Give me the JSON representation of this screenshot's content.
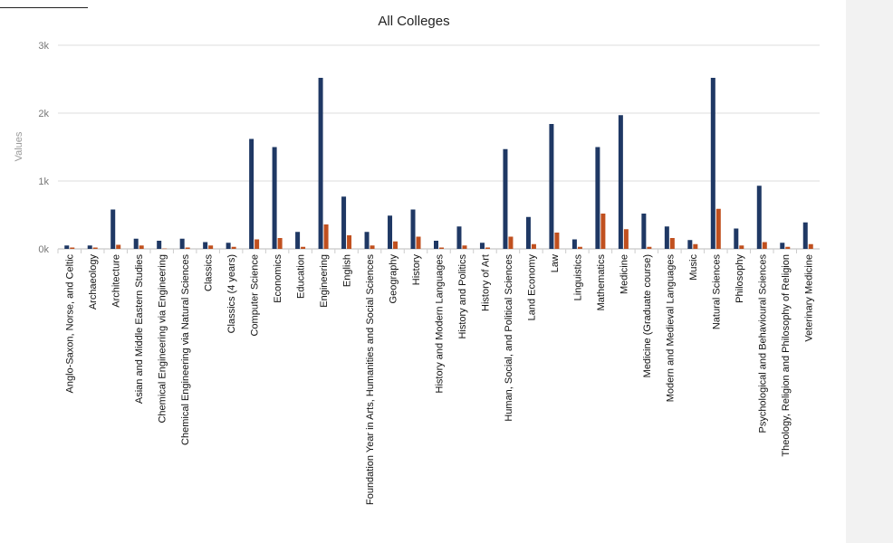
{
  "chart_data": {
    "type": "bar",
    "title": "All Colleges",
    "ylabel": "Values",
    "xlabel": "",
    "ylim": [
      0,
      3000
    ],
    "yticks": [
      {
        "value": 0,
        "label": "0k"
      },
      {
        "value": 1000,
        "label": "1k"
      },
      {
        "value": 2000,
        "label": "2k"
      },
      {
        "value": 3000,
        "label": "3k"
      }
    ],
    "grid": true,
    "legend": "none",
    "colors": [
      "#1f3864",
      "#c0501f"
    ],
    "categories": [
      "Anglo-Saxon, Norse, and Celtic",
      "Archaeology",
      "Architecture",
      "Asian and Middle Eastern Studies",
      "Chemical Engineering via Engineering",
      "Chemical Engineering via Natural Sciences",
      "Classics",
      "Classics (4 years)",
      "Computer Science",
      "Economics",
      "Education",
      "Engineering",
      "English",
      "Foundation Year in Arts, Humanities and Social Sciences",
      "Geography",
      "History",
      "History and Modern Languages",
      "History and Politics",
      "History of Art",
      "Human, Social, and Political Sciences",
      "Land Economy",
      "Law",
      "Linguistics",
      "Mathematics",
      "Medicine",
      "Medicine (Graduate course)",
      "Modern and Medieval Languages",
      "Music",
      "Natural Sciences",
      "Philosophy",
      "Psychological and Behavioural Sciences",
      "Theology, Religion and Philosophy of Religion",
      "Veterinary Medicine"
    ],
    "series": [
      {
        "values": [
          50,
          50,
          580,
          150,
          120,
          150,
          100,
          90,
          1620,
          1500,
          250,
          2520,
          770,
          250,
          490,
          580,
          120,
          330,
          90,
          1470,
          470,
          1840,
          140,
          1500,
          1970,
          520,
          330,
          130,
          2520,
          300,
          930,
          90,
          390
        ]
      },
      {
        "values": [
          20,
          20,
          60,
          50,
          5,
          20,
          50,
          30,
          140,
          160,
          30,
          360,
          200,
          50,
          110,
          180,
          20,
          50,
          20,
          180,
          70,
          240,
          30,
          520,
          290,
          30,
          160,
          70,
          590,
          50,
          100,
          30,
          70
        ]
      }
    ]
  }
}
